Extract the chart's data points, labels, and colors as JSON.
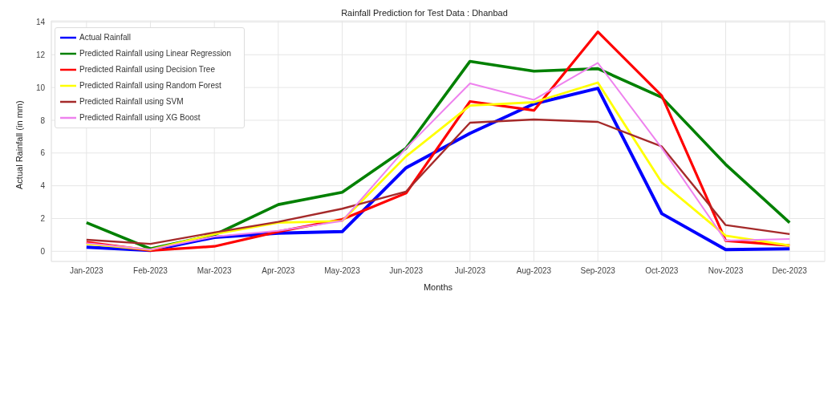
{
  "chart_data": {
    "type": "line",
    "title": "Rainfall Prediction for Test Data : Dhanbad",
    "xlabel": "Months",
    "ylabel": "Actual Rainfall (in mm)",
    "categories": [
      "Jan-2023",
      "Feb-2023",
      "Mar-2023",
      "Apr-2023",
      "May-2023",
      "Jun-2023",
      "Jul-2023",
      "Aug-2023",
      "Sep-2023",
      "Oct-2023",
      "Nov-2023",
      "Dec-2023"
    ],
    "series": [
      {
        "name": "Actual Rainfall",
        "color": "#0000ff",
        "values": [
          0.25,
          0.05,
          0.85,
          1.1,
          1.2,
          5.1,
          7.2,
          9.0,
          9.95,
          2.3,
          0.1,
          0.15
        ]
      },
      {
        "name": "Predicted Rainfall using Linear Regression",
        "color": "#008000",
        "values": [
          1.75,
          0.15,
          1.0,
          2.85,
          3.6,
          6.3,
          11.6,
          11.0,
          11.15,
          9.4,
          5.3,
          1.75
        ]
      },
      {
        "name": "Predicted Rainfall using Decision Tree",
        "color": "#ff0000",
        "values": [
          0.55,
          0.05,
          0.3,
          1.2,
          1.95,
          3.55,
          9.15,
          8.6,
          13.4,
          9.5,
          0.65,
          0.35
        ]
      },
      {
        "name": "Predicted Rainfall using Random Forest",
        "color": "#ffff00",
        "values": [
          0.45,
          0.1,
          1.05,
          1.75,
          1.85,
          5.8,
          8.9,
          9.1,
          10.3,
          4.2,
          0.95,
          0.35
        ]
      },
      {
        "name": "Predicted Rainfall using SVM",
        "color": "#a52a2a",
        "values": [
          0.7,
          0.45,
          1.15,
          1.8,
          2.6,
          3.65,
          7.85,
          8.05,
          7.9,
          6.4,
          1.6,
          1.05
        ]
      },
      {
        "name": "Predicted Rainfall using XG Boost",
        "color": "#ee82ee",
        "values": [
          0.5,
          0.1,
          0.9,
          1.25,
          1.85,
          6.3,
          10.25,
          9.25,
          11.5,
          6.3,
          0.65,
          0.75
        ]
      }
    ],
    "ylim": [
      -0.62,
      14.07
    ],
    "yticks": [
      0,
      2,
      4,
      6,
      8,
      10,
      12,
      14
    ],
    "grid": true,
    "legend": "top left",
    "marker": "none",
    "line_style": "solid"
  }
}
